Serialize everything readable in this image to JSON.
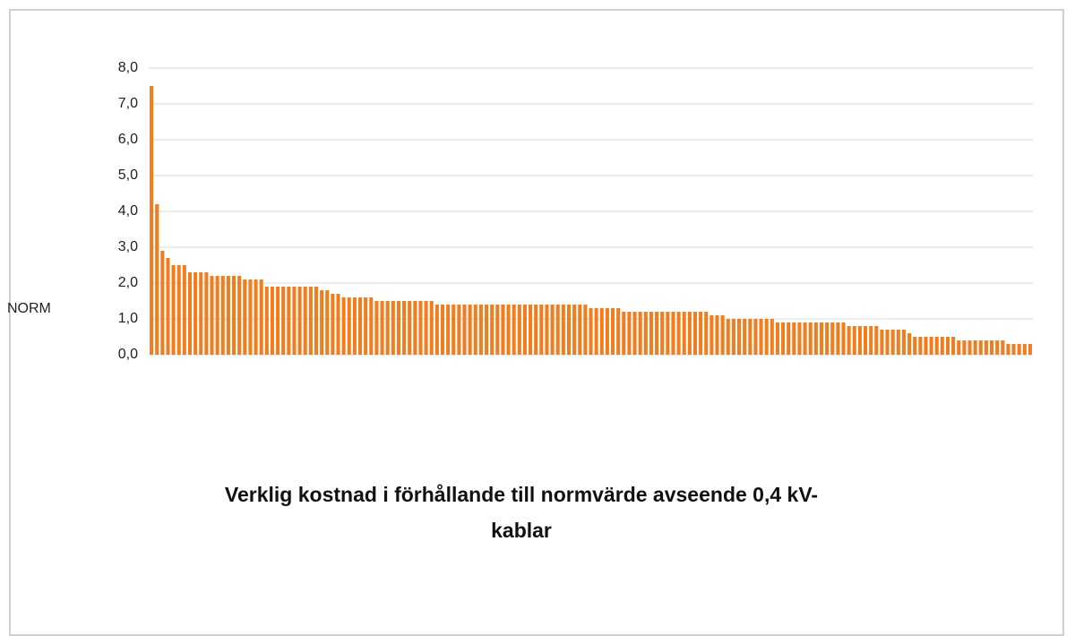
{
  "chart_data": {
    "type": "bar",
    "title": "Verklig kostnad i förhållande till normvärde avseende 0,4 kV-kablar",
    "y_label": "NORM",
    "color": "#f07d1e",
    "grid": true,
    "ylim": [
      0,
      8
    ],
    "yticks": [
      {
        "value": 0,
        "label": "0,0"
      },
      {
        "value": 1,
        "label": "1,0"
      },
      {
        "value": 2,
        "label": "2,0"
      },
      {
        "value": 3,
        "label": "3,0"
      },
      {
        "value": 4,
        "label": "4,0"
      },
      {
        "value": 5,
        "label": "5,0"
      },
      {
        "value": 6,
        "label": "6,0"
      },
      {
        "value": 7,
        "label": "7,0"
      },
      {
        "value": 8,
        "label": "8,0"
      }
    ],
    "categories": [
      null,
      null,
      null,
      null,
      null,
      null,
      null,
      null,
      null,
      null,
      null,
      null,
      null,
      null,
      null,
      null,
      null,
      null,
      null,
      null,
      null,
      null,
      null,
      null,
      null,
      null,
      null,
      null,
      null,
      null,
      null,
      null,
      null,
      null,
      null,
      null,
      null,
      null,
      null,
      null,
      null,
      null,
      null,
      null,
      null,
      null,
      null,
      null,
      null,
      null,
      null,
      null,
      null,
      null,
      null,
      null,
      null,
      null,
      null,
      null,
      null,
      null,
      null,
      null,
      null,
      null,
      null,
      null,
      null,
      null,
      null,
      null,
      null,
      null,
      null,
      null,
      null,
      null,
      null,
      null,
      null,
      null,
      null,
      null,
      null,
      null,
      null,
      null,
      null,
      null,
      null,
      null,
      null,
      null,
      null,
      null,
      null,
      null,
      null,
      null,
      null,
      null,
      null,
      null,
      null,
      null,
      null,
      null,
      null,
      null,
      null,
      null,
      null,
      null,
      null,
      null,
      null,
      null,
      null,
      null,
      null,
      null,
      null,
      null,
      null,
      null,
      null,
      null,
      null,
      null,
      null,
      null,
      null,
      null,
      null,
      null,
      null,
      null,
      null,
      null,
      null,
      null,
      null,
      null,
      null,
      null,
      null,
      null,
      null,
      null,
      null,
      null,
      null,
      null,
      null,
      null,
      null,
      null,
      null,
      null,
      null
    ],
    "values": [
      7.5,
      4.2,
      2.9,
      2.7,
      2.5,
      2.5,
      2.5,
      2.3,
      2.3,
      2.3,
      2.3,
      2.2,
      2.2,
      2.2,
      2.2,
      2.2,
      2.2,
      2.1,
      2.1,
      2.1,
      2.1,
      1.9,
      1.9,
      1.9,
      1.9,
      1.9,
      1.9,
      1.9,
      1.9,
      1.9,
      1.9,
      1.8,
      1.8,
      1.7,
      1.7,
      1.6,
      1.6,
      1.6,
      1.6,
      1.6,
      1.6,
      1.5,
      1.5,
      1.5,
      1.5,
      1.5,
      1.5,
      1.5,
      1.5,
      1.5,
      1.5,
      1.5,
      1.4,
      1.4,
      1.4,
      1.4,
      1.4,
      1.4,
      1.4,
      1.4,
      1.4,
      1.4,
      1.4,
      1.4,
      1.4,
      1.4,
      1.4,
      1.4,
      1.4,
      1.4,
      1.4,
      1.4,
      1.4,
      1.4,
      1.4,
      1.4,
      1.4,
      1.4,
      1.4,
      1.4,
      1.3,
      1.3,
      1.3,
      1.3,
      1.3,
      1.3,
      1.2,
      1.2,
      1.2,
      1.2,
      1.2,
      1.2,
      1.2,
      1.2,
      1.2,
      1.2,
      1.2,
      1.2,
      1.2,
      1.2,
      1.2,
      1.2,
      1.1,
      1.1,
      1.1,
      1.0,
      1.0,
      1.0,
      1.0,
      1.0,
      1.0,
      1.0,
      1.0,
      1.0,
      0.9,
      0.9,
      0.9,
      0.9,
      0.9,
      0.9,
      0.9,
      0.9,
      0.9,
      0.9,
      0.9,
      0.9,
      0.9,
      0.8,
      0.8,
      0.8,
      0.8,
      0.8,
      0.8,
      0.7,
      0.7,
      0.7,
      0.7,
      0.7,
      0.6,
      0.5,
      0.5,
      0.5,
      0.5,
      0.5,
      0.5,
      0.5,
      0.5,
      0.4,
      0.4,
      0.4,
      0.4,
      0.4,
      0.4,
      0.4,
      0.4,
      0.4,
      0.3,
      0.3,
      0.3,
      0.3,
      0.3
    ]
  }
}
